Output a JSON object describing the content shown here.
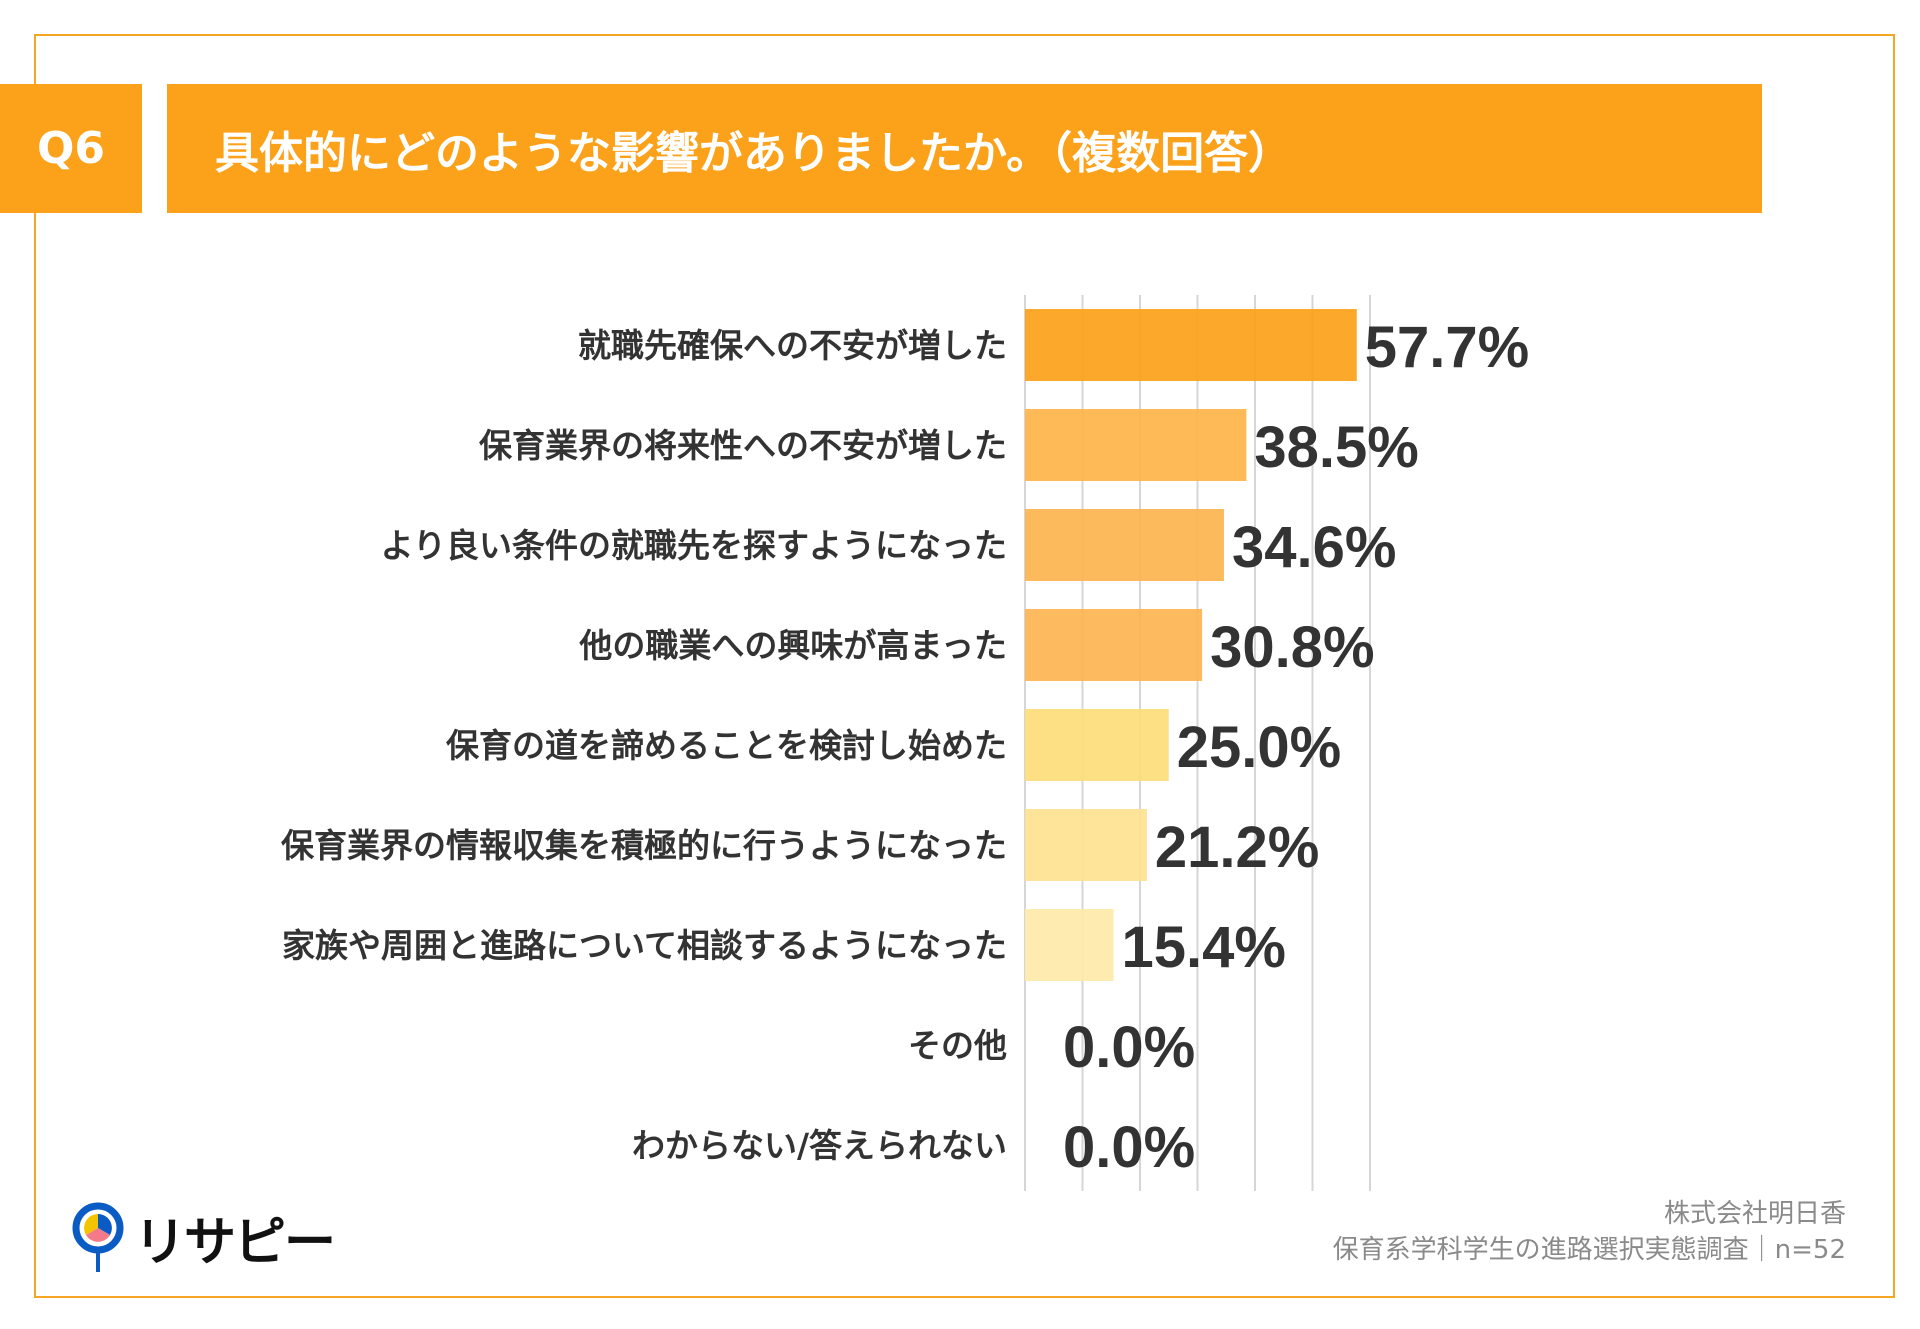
{
  "header": {
    "question_no": "Q6",
    "title": "具体的にどのような影響がありましたか。（複数回答）"
  },
  "chart_data": {
    "type": "bar",
    "orientation": "horizontal",
    "title": "具体的にどのような影響がありましたか。（複数回答）",
    "categories": [
      "就職先確保への不安が増した",
      "保育業界の将来性への不安が増した",
      "より良い条件の就職先を探すようになった",
      "他の職業への興味が高まった",
      "保育の道を諦めることを検討し始めた",
      "保育業界の情報収集を積極的に行うようになった",
      "家族や周囲と進路について相談するようになった",
      "その他",
      "わからない/答えられない"
    ],
    "values": [
      57.7,
      38.5,
      34.6,
      30.8,
      25.0,
      21.2,
      15.4,
      0.0,
      0.0
    ],
    "value_labels": [
      "57.7%",
      "38.5%",
      "34.6%",
      "30.8%",
      "25.0%",
      "21.2%",
      "15.4%",
      "0.0%",
      "0.0%"
    ],
    "colors": [
      "#fca118",
      "#fdb448",
      "#fdb44e",
      "#fdb450",
      "#fddc7a",
      "#fee28f",
      "#fee9a8",
      "#fee9a8",
      "#fee9a8"
    ],
    "xlim": [
      0,
      60
    ],
    "grid": true,
    "grid_step": 10,
    "legend": "none"
  },
  "footer": {
    "company": "株式会社明日香",
    "survey": "保育系学科学生の進路選択実態調査｜n=52"
  },
  "logo": {
    "text": "リサピー"
  },
  "accent": "#fca11a"
}
